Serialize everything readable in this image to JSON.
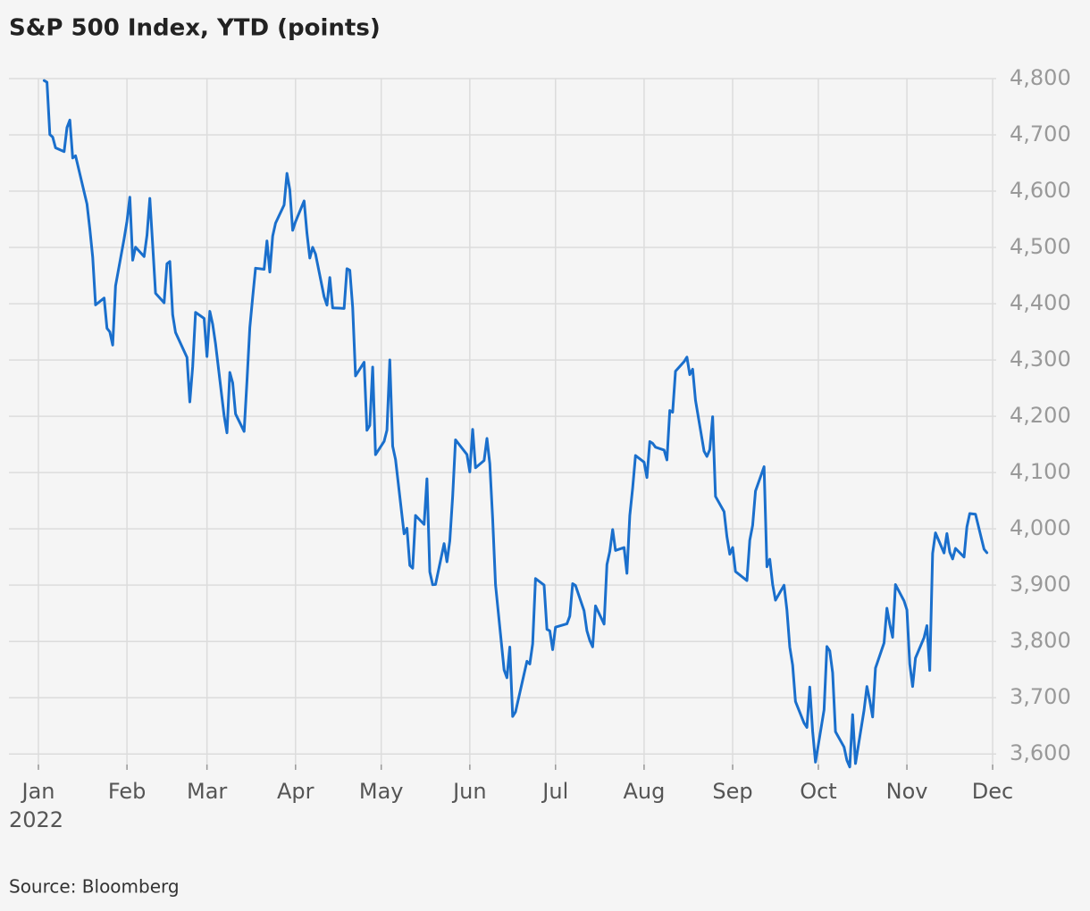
{
  "chart_data": {
    "type": "line",
    "title": "S&P 500 Index, YTD (points)",
    "xlabel": "2022",
    "source": "Source: Bloomberg",
    "grid": true,
    "xlim": [
      0,
      334
    ],
    "xticks": [
      {
        "value": 0,
        "label": "Jan"
      },
      {
        "value": 31,
        "label": "Feb"
      },
      {
        "value": 59,
        "label": "Mar"
      },
      {
        "value": 90,
        "label": "Apr"
      },
      {
        "value": 120,
        "label": "May"
      },
      {
        "value": 151,
        "label": "Jun"
      },
      {
        "value": 181,
        "label": "Jul"
      },
      {
        "value": 212,
        "label": "Aug"
      },
      {
        "value": 243,
        "label": "Sep"
      },
      {
        "value": 273,
        "label": "Oct"
      },
      {
        "value": 304,
        "label": "Nov"
      },
      {
        "value": 334,
        "label": "Dec"
      }
    ],
    "ylim": [
      3575,
      4800
    ],
    "yticks": [
      {
        "value": 3600,
        "label": "3,600"
      },
      {
        "value": 3700,
        "label": "3,700"
      },
      {
        "value": 3800,
        "label": "3,800"
      },
      {
        "value": 3900,
        "label": "3,900"
      },
      {
        "value": 4000,
        "label": "4,000"
      },
      {
        "value": 4100,
        "label": "4,100"
      },
      {
        "value": 4200,
        "label": "4,200"
      },
      {
        "value": 4300,
        "label": "4,300"
      },
      {
        "value": 4400,
        "label": "4,400"
      },
      {
        "value": 4500,
        "label": "4,500"
      },
      {
        "value": 4600,
        "label": "4,600"
      },
      {
        "value": 4700,
        "label": "4,700"
      },
      {
        "value": 4800,
        "label": "4,800"
      }
    ],
    "x": [
      2,
      3,
      4,
      5,
      6,
      9,
      10,
      11,
      12,
      13,
      17,
      18,
      19,
      20,
      23,
      24,
      25,
      26,
      27,
      30,
      31,
      32,
      33,
      34,
      37,
      38,
      39,
      40,
      41,
      44,
      45,
      46,
      47,
      48,
      52,
      53,
      54,
      55,
      58,
      59,
      60,
      61,
      62,
      65,
      66,
      67,
      68,
      69,
      72,
      73,
      74,
      75,
      76,
      79,
      80,
      81,
      82,
      83,
      86,
      87,
      88,
      89,
      90,
      93,
      94,
      95,
      96,
      97,
      100,
      101,
      102,
      103,
      107,
      108,
      109,
      110,
      111,
      114,
      115,
      116,
      117,
      118,
      121,
      122,
      123,
      124,
      125,
      128,
      129,
      130,
      131,
      132,
      135,
      136,
      137,
      138,
      139,
      142,
      143,
      144,
      145,
      146,
      150,
      151,
      152,
      153,
      156,
      157,
      158,
      159,
      160,
      163,
      164,
      165,
      166,
      167,
      171,
      172,
      173,
      174,
      177,
      178,
      179,
      180,
      181,
      185,
      186,
      187,
      188,
      191,
      192,
      193,
      194,
      195,
      198,
      199,
      200,
      201,
      202,
      205,
      206,
      207,
      208,
      209,
      212,
      213,
      214,
      215,
      216,
      219,
      220,
      221,
      222,
      223,
      226,
      227,
      228,
      229,
      230,
      233,
      234,
      235,
      236,
      237,
      240,
      241,
      242,
      243,
      244,
      248,
      249,
      250,
      251,
      254,
      255,
      256,
      257,
      258,
      261,
      262,
      263,
      264,
      265,
      268,
      269,
      270,
      271,
      272,
      275,
      276,
      277,
      278,
      279,
      282,
      283,
      284,
      285,
      286,
      289,
      290,
      291,
      292,
      293,
      296,
      297,
      298,
      299,
      300,
      303,
      304,
      305,
      306,
      307,
      310,
      311,
      312,
      313,
      314,
      317,
      318,
      319,
      320,
      321,
      324,
      325,
      326,
      328,
      331,
      332
    ],
    "series": [
      {
        "name": "S&P 500",
        "color": "#1a6fcc",
        "values": [
          4796.56,
          4793.54,
          4700.58,
          4696.05,
          4677.03,
          4670.29,
          4713.07,
          4726.35,
          4659.03,
          4662.85,
          4577.11,
          4532.76,
          4482.73,
          4397.94,
          4410.13,
          4356.45,
          4349.93,
          4326.51,
          4431.85,
          4515.55,
          4546.54,
          4589.38,
          4477.44,
          4500.53,
          4483.87,
          4521.54,
          4587.18,
          4504.08,
          4418.64,
          4401.67,
          4471.07,
          4475.01,
          4380.26,
          4348.87,
          4304.76,
          4225.5,
          4288.7,
          4384.65,
          4373.94,
          4306.26,
          4386.54,
          4363.49,
          4328.87,
          4201.09,
          4170.7,
          4277.88,
          4259.52,
          4204.31,
          4173.11,
          4262.45,
          4357.86,
          4411.67,
          4463.12,
          4461.18,
          4511.61,
          4456.24,
          4520.16,
          4543.06,
          4575.52,
          4631.6,
          4602.45,
          4530.41,
          4545.86,
          4582.64,
          4525.12,
          4481.15,
          4500.21,
          4488.28,
          4412.53,
          4397.45,
          4446.59,
          4392.59,
          4391.69,
          4462.21,
          4459.45,
          4393.66,
          4271.78,
          4296.12,
          4175.2,
          4183.96,
          4287.5,
          4131.93,
          4155.38,
          4175.48,
          4300.17,
          4146.87,
          4123.34,
          3991.24,
          4001.05,
          3935.18,
          3930.08,
          4023.89,
          4008.01,
          4088.85,
          3923.68,
          3900.79,
          3901.36,
          3973.75,
          3941.48,
          3978.73,
          4057.84,
          4158.24,
          4132.15,
          4101.23,
          4176.82,
          4108.54,
          4121.43,
          4160.68,
          4115.77,
          4017.82,
          3900.86,
          3749.63,
          3735.48,
          3789.99,
          3666.77,
          3674.84,
          3764.79,
          3759.89,
          3795.73,
          3911.74,
          3900.11,
          3821.55,
          3818.83,
          3785.38,
          3825.33,
          3831.39,
          3845.08,
          3902.62,
          3899.38,
          3854.43,
          3818.8,
          3801.78,
          3790.38,
          3863.16,
          3830.85,
          3936.69,
          3959.9,
          3998.95,
          3961.63,
          3966.84,
          3921.05,
          4023.61,
          4072.43,
          4130.29,
          4118.63,
          4091.19,
          4155.17,
          4151.94,
          4145.19,
          4140.06,
          4122.47,
          4210.24,
          4207.27,
          4280.15,
          4297.14,
          4305.2,
          4274.04,
          4283.74,
          4228.48,
          4137.99,
          4128.73,
          4140.77,
          4199.12,
          4057.66,
          4030.61,
          3986.16,
          3955.0,
          3966.85,
          3924.26,
          3908.19,
          3979.87,
          4006.18,
          4067.36,
          4110.41,
          3932.69,
          3946.01,
          3901.35,
          3873.33,
          3899.89,
          3855.93,
          3789.93,
          3757.99,
          3693.23,
          3655.04,
          3647.29,
          3719.04,
          3640.47,
          3585.62,
          3678.43,
          3790.93,
          3783.28,
          3744.52,
          3639.66,
          3612.39,
          3588.84,
          3577.03,
          3669.91,
          3583.07,
          3677.95,
          3719.98,
          3695.16,
          3665.78,
          3752.75,
          3797.34,
          3859.11,
          3830.6,
          3807.3,
          3901.06,
          3871.98,
          3856.1,
          3759.69,
          3719.89,
          3770.55,
          3806.8,
          3828.11,
          3748.57,
          3956.37,
          3992.93,
          3957.25,
          3991.73,
          3958.79,
          3946.56,
          3965.34,
          3949.94,
          4003.58,
          4027.26,
          4026.12,
          3963.94,
          3957.63
        ]
      }
    ]
  }
}
